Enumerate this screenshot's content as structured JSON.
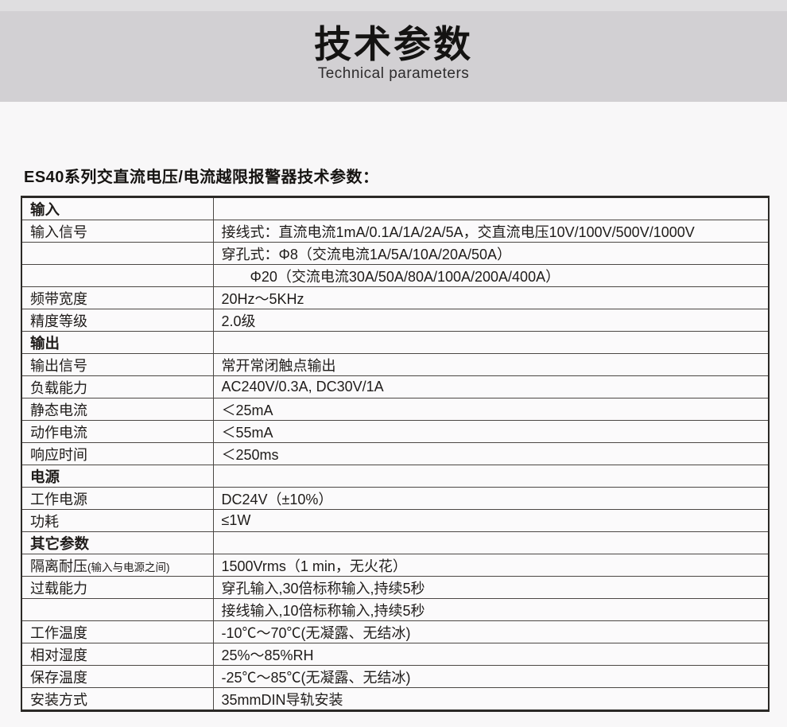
{
  "header": {
    "title": "技术参数",
    "subtitle": "Technical parameters"
  },
  "intro": {
    "heading": "ES40系列交直流电压/电流越限报警器技术参数："
  },
  "colors": {
    "band_light": "#dfdee0",
    "band": "#d2d0d3",
    "page_background": "#f8f7f8",
    "table_border": "#2b2926",
    "grid_line": "#4b4744",
    "text": "#1f1c1a"
  },
  "table": {
    "rows": [
      {
        "label": "输入",
        "value": "",
        "section": true
      },
      {
        "label": "输入信号",
        "value": "接线式：直流电流1mA/0.1A/1A/2A/5A，交直流电压10V/100V/500V/1000V"
      },
      {
        "label": "",
        "value": "穿孔式：Φ8（交流电流1A/5A/10A/20A/50A）"
      },
      {
        "label": "",
        "value": "Φ20（交流电流30A/50A/80A/100A/200A/400A）",
        "indent": true
      },
      {
        "label": "频带宽度",
        "value": "20Hz～5KHz"
      },
      {
        "label": "精度等级",
        "value": "2.0级"
      },
      {
        "label": "输出",
        "value": "",
        "section": true
      },
      {
        "label": "输出信号",
        "value": "常开常闭触点输出"
      },
      {
        "label": "负载能力",
        "value": "AC240V/0.3A, DC30V/1A"
      },
      {
        "label": "静态电流",
        "value": "＜25mA"
      },
      {
        "label": "动作电流",
        "value": "＜55mA"
      },
      {
        "label": "响应时间",
        "value": "＜250ms"
      },
      {
        "label": "电源",
        "value": "",
        "section": true
      },
      {
        "label": "工作电源",
        "value": "DC24V（±10%）"
      },
      {
        "label": "功耗",
        "value": "≤1W"
      },
      {
        "label": "其它参数",
        "value": "",
        "section": true
      },
      {
        "label": "隔离耐压",
        "label_small": "(输入与电源之间)",
        "value": "1500Vrms（1 min，无火花）"
      },
      {
        "label": "过载能力",
        "value": "穿孔输入,30倍标称输入,持续5秒"
      },
      {
        "label": "",
        "value": "接线输入,10倍标称输入,持续5秒"
      },
      {
        "label": "工作温度",
        "value": "-10℃～70℃(无凝露、无结冰)"
      },
      {
        "label": "相对湿度",
        "value": "25%～85%RH"
      },
      {
        "label": "保存温度",
        "value": "-25℃～85℃(无凝露、无结冰)"
      },
      {
        "label": "安装方式",
        "value": "35mmDIN导轨安装"
      }
    ]
  }
}
